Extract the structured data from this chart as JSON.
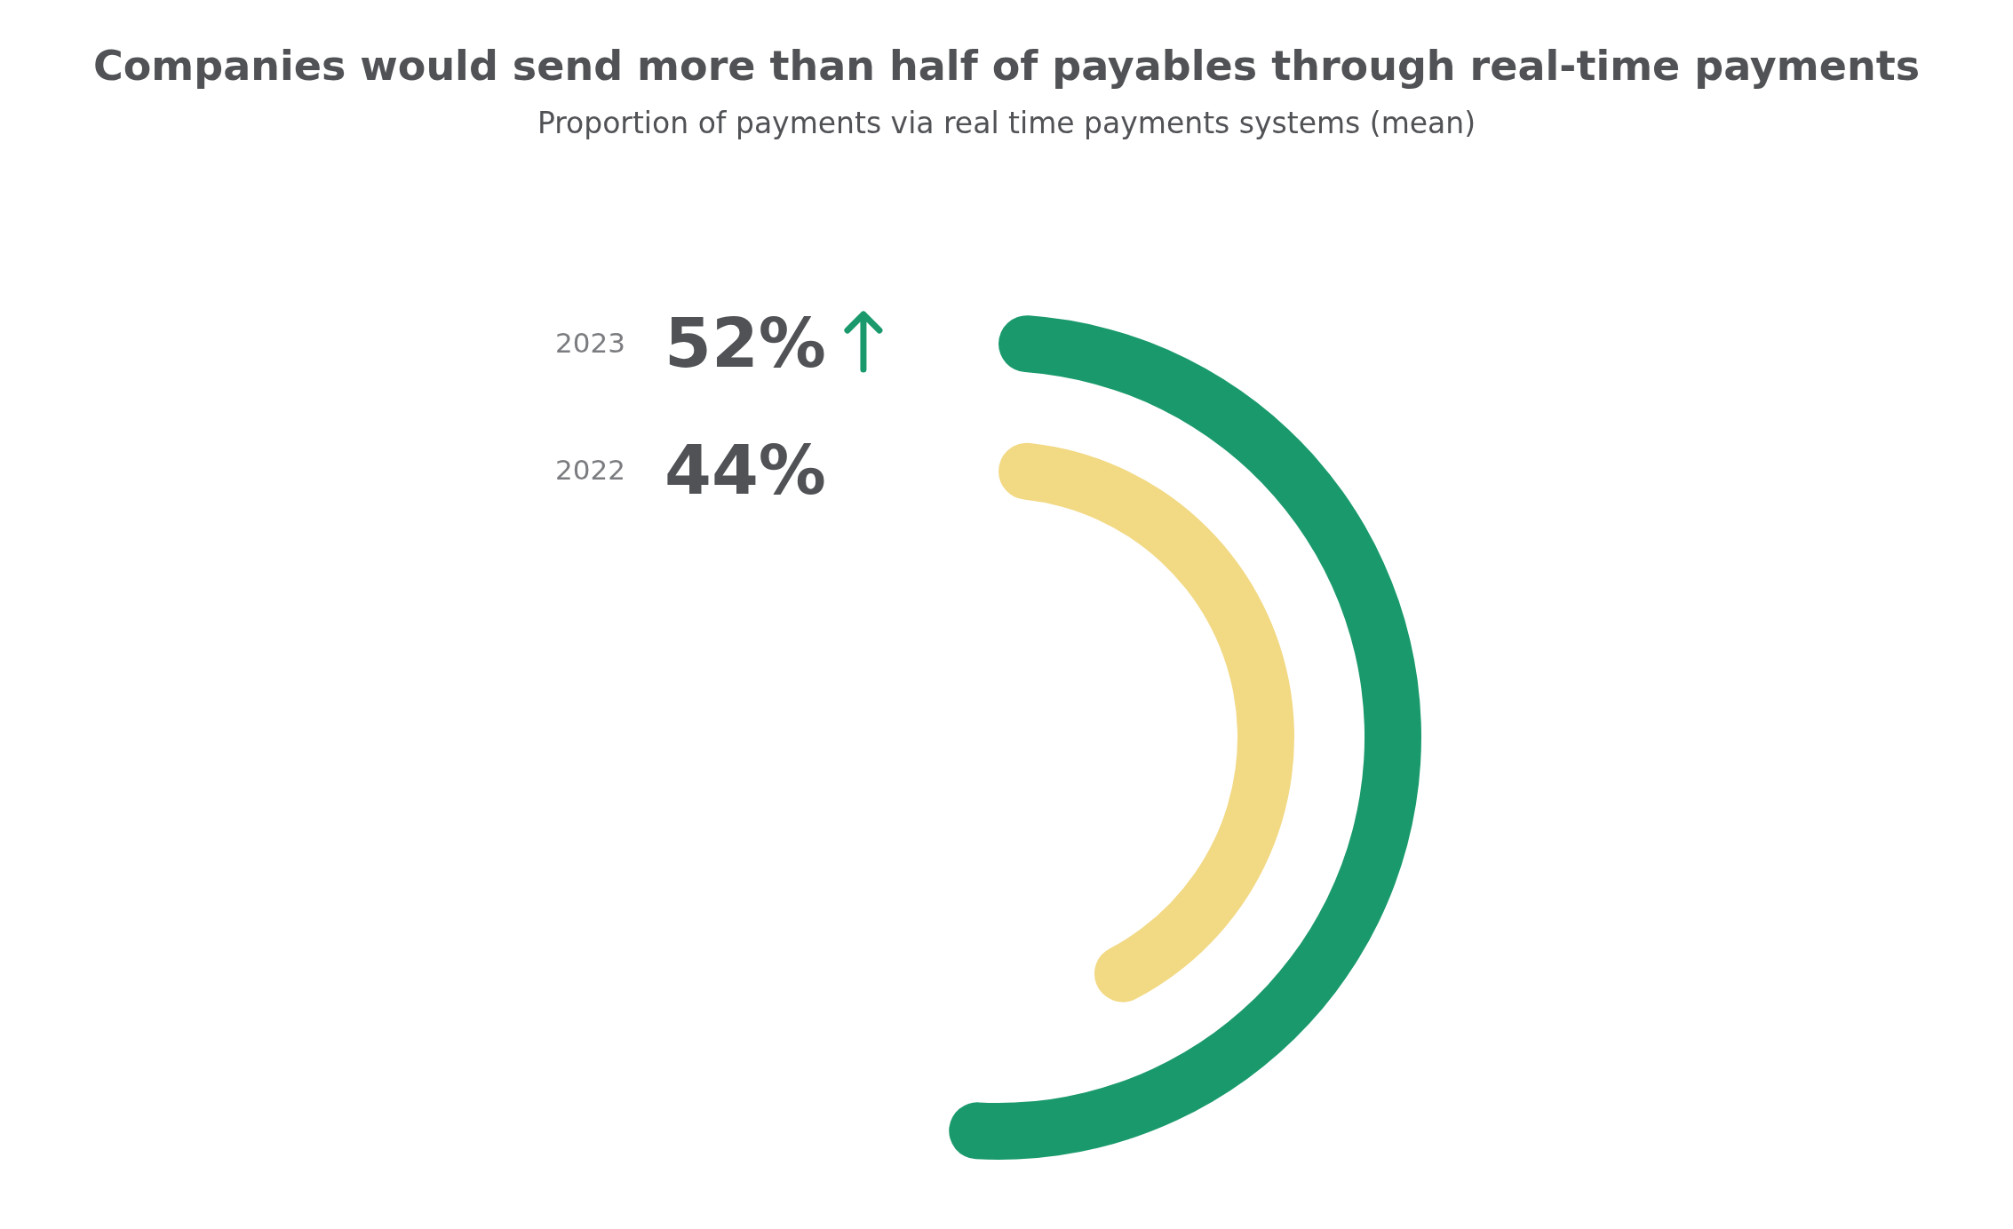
{
  "chart_data": {
    "type": "other",
    "title": "Companies would send more than half of payables through real-time payments",
    "subtitle": "Proportion of payments via real time payments systems (mean)",
    "categories": [
      "2023",
      "2022"
    ],
    "values": [
      52,
      44
    ],
    "colors": [
      "#1a9a6c",
      "#f2d984"
    ],
    "value_labels": [
      "52%",
      "44%"
    ]
  }
}
